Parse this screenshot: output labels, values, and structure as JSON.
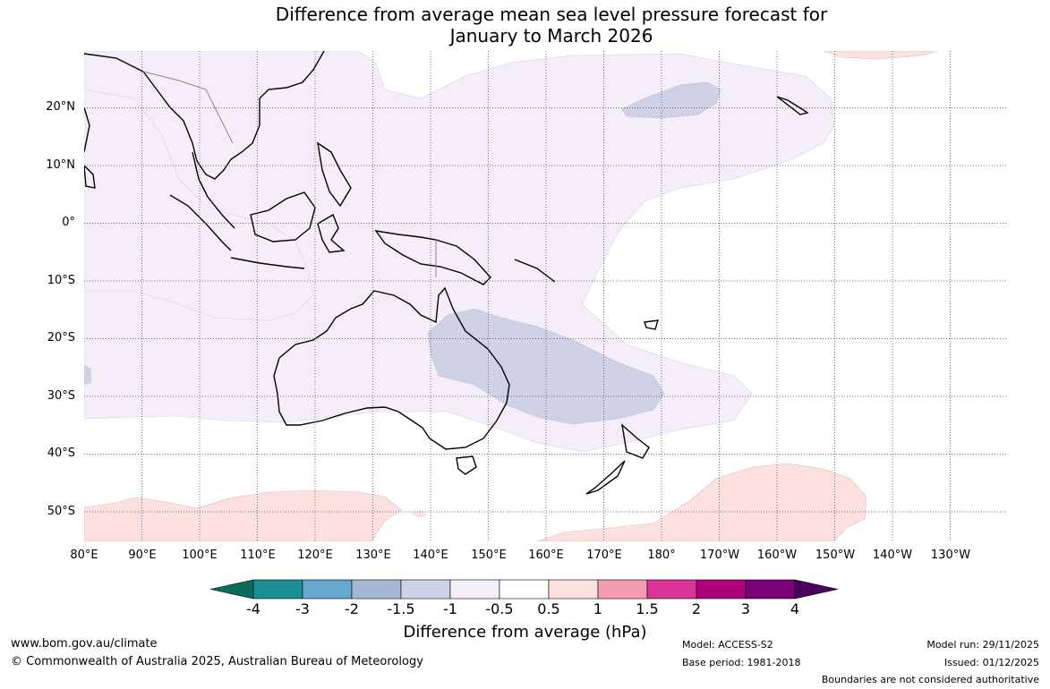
{
  "title": {
    "line1": "Difference from average mean sea level pressure forecast for",
    "line2": "January to March 2026"
  },
  "map": {
    "lat_labels": [
      "20°N",
      "10°N",
      "0°",
      "10°S",
      "20°S",
      "30°S",
      "40°S",
      "50°S"
    ],
    "lon_labels": [
      "80°E",
      "90°E",
      "100°E",
      "110°E",
      "120°E",
      "130°E",
      "140°E",
      "150°E",
      "160°E",
      "170°E",
      "180°",
      "170°W",
      "160°W",
      "150°W",
      "140°W",
      "130°W"
    ],
    "lon_range_east": [
      80,
      235
    ],
    "lat_range": [
      -55,
      30
    ]
  },
  "colorbar": {
    "labels": [
      "-4",
      "-3",
      "-2",
      "-1.5",
      "-1",
      "-0.5",
      "0.5",
      "1",
      "1.5",
      "2",
      "3",
      "4"
    ],
    "colors": [
      "#0c6c5c",
      "#1a8f94",
      "#67a9cf",
      "#a6b7d6",
      "#cfd1e6",
      "#f3eef7",
      "#ffffff",
      "#fde0e0",
      "#f59bb4",
      "#dd3497",
      "#ae017e",
      "#7a0177",
      "#4a0060"
    ],
    "title": "Difference from average (hPa)"
  },
  "footer": {
    "website": "www.bom.gov.au/climate",
    "copyright": "© Commonwealth of Australia 2025, Australian Bureau of Meteorology",
    "model": "Model: ACCESS-S2",
    "base_period": "Base period: 1981-2018",
    "model_run": "Model run: 29/11/2025",
    "issued": "Issued: 01/12/2025",
    "disclaimer": "Boundaries are not considered authoritative"
  }
}
